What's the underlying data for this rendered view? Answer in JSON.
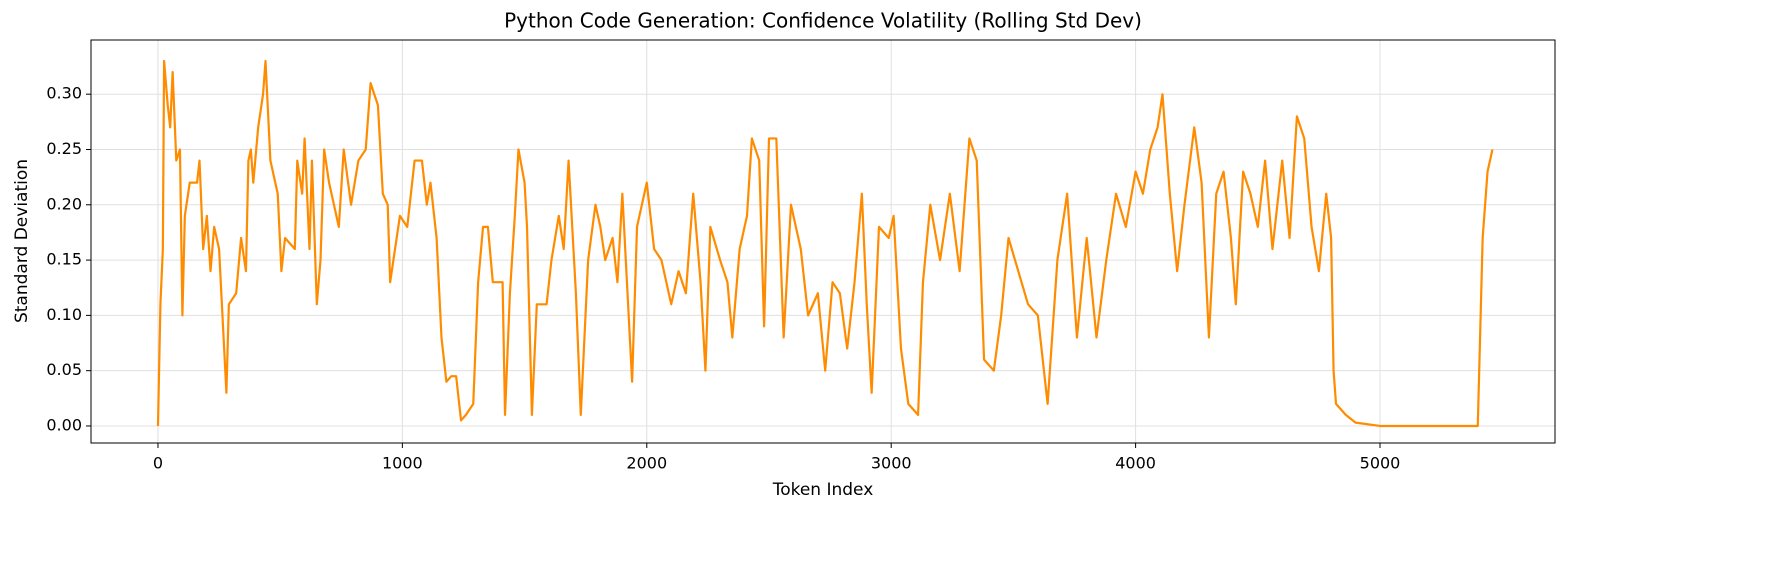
{
  "chart_data": {
    "type": "line",
    "title": "Python Code Generation: Confidence Volatility (Rolling Std Dev)",
    "x_label": "Token Index",
    "y_label": "Standard Deviation",
    "grid": true,
    "xlim": [
      -274,
      5716
    ],
    "xticks": [
      0,
      1000,
      2000,
      3000,
      4000,
      5000
    ],
    "ylim": [
      -0.0154,
      0.349
    ],
    "yticks": [
      {
        "value": 0,
        "label": "0.00"
      },
      {
        "value": 0.05,
        "label": "0.05"
      },
      {
        "value": 0.1,
        "label": "0.10"
      },
      {
        "value": 0.15,
        "label": "0.15"
      },
      {
        "value": 0.2,
        "label": "0.20"
      },
      {
        "value": 0.25,
        "label": "0.25"
      },
      {
        "value": 0.3,
        "label": "0.30"
      }
    ],
    "x": [
      0,
      10,
      20,
      25,
      40,
      50,
      60,
      75,
      90,
      100,
      110,
      130,
      160,
      170,
      185,
      200,
      215,
      230,
      250,
      280,
      290,
      320,
      340,
      360,
      370,
      380,
      390,
      410,
      430,
      440,
      460,
      490,
      505,
      520,
      560,
      570,
      590,
      600,
      620,
      630,
      650,
      665,
      680,
      700,
      740,
      760,
      790,
      820,
      850,
      870,
      900,
      920,
      940,
      950,
      970,
      990,
      1020,
      1050,
      1080,
      1100,
      1115,
      1140,
      1160,
      1180,
      1200,
      1220,
      1240,
      1260,
      1290,
      1310,
      1330,
      1350,
      1370,
      1410,
      1420,
      1440,
      1460,
      1475,
      1500,
      1510,
      1530,
      1550,
      1590,
      1610,
      1640,
      1660,
      1680,
      1710,
      1730,
      1760,
      1790,
      1810,
      1830,
      1860,
      1880,
      1900,
      1940,
      1960,
      1980,
      2000,
      2030,
      2060,
      2100,
      2130,
      2160,
      2190,
      2220,
      2240,
      2260,
      2300,
      2330,
      2350,
      2380,
      2410,
      2430,
      2460,
      2480,
      2500,
      2530,
      2560,
      2590,
      2630,
      2660,
      2700,
      2730,
      2760,
      2790,
      2820,
      2850,
      2880,
      2900,
      2920,
      2950,
      2990,
      3010,
      3040,
      3070,
      3110,
      3130,
      3160,
      3200,
      3240,
      3280,
      3320,
      3350,
      3380,
      3420,
      3450,
      3480,
      3520,
      3560,
      3600,
      3640,
      3680,
      3720,
      3760,
      3800,
      3840,
      3880,
      3920,
      3960,
      4000,
      4030,
      4060,
      4090,
      4110,
      4140,
      4170,
      4200,
      4240,
      4270,
      4300,
      4330,
      4360,
      4390,
      4410,
      4440,
      4470,
      4500,
      4530,
      4560,
      4600,
      4630,
      4660,
      4690,
      4720,
      4750,
      4780,
      4800,
      4810,
      4820,
      4860,
      4900,
      5000,
      5100,
      5200,
      5300,
      5400,
      5420,
      5440,
      5460
    ],
    "series": [
      {
        "name": "Rolling Std Dev",
        "color": "#ff8c00",
        "values": [
          0,
          0.11,
          0.16,
          0.33,
          0.29,
          0.27,
          0.32,
          0.24,
          0.25,
          0.1,
          0.19,
          0.22,
          0.22,
          0.24,
          0.16,
          0.19,
          0.14,
          0.18,
          0.16,
          0.03,
          0.11,
          0.12,
          0.17,
          0.14,
          0.24,
          0.25,
          0.22,
          0.27,
          0.3,
          0.33,
          0.24,
          0.21,
          0.14,
          0.17,
          0.16,
          0.24,
          0.21,
          0.26,
          0.16,
          0.24,
          0.11,
          0.15,
          0.25,
          0.22,
          0.18,
          0.25,
          0.2,
          0.24,
          0.25,
          0.31,
          0.29,
          0.21,
          0.2,
          0.13,
          0.16,
          0.19,
          0.18,
          0.24,
          0.24,
          0.2,
          0.22,
          0.17,
          0.08,
          0.04,
          0.045,
          0.045,
          0.005,
          0.01,
          0.02,
          0.13,
          0.18,
          0.18,
          0.13,
          0.13,
          0.01,
          0.12,
          0.19,
          0.25,
          0.22,
          0.18,
          0.01,
          0.11,
          0.11,
          0.15,
          0.19,
          0.16,
          0.24,
          0.12,
          0.01,
          0.15,
          0.2,
          0.18,
          0.15,
          0.17,
          0.13,
          0.21,
          0.04,
          0.18,
          0.2,
          0.22,
          0.16,
          0.15,
          0.11,
          0.14,
          0.12,
          0.21,
          0.13,
          0.05,
          0.18,
          0.15,
          0.13,
          0.08,
          0.16,
          0.19,
          0.26,
          0.24,
          0.09,
          0.26,
          0.26,
          0.08,
          0.2,
          0.16,
          0.1,
          0.12,
          0.05,
          0.13,
          0.12,
          0.07,
          0.13,
          0.21,
          0.11,
          0.03,
          0.18,
          0.17,
          0.19,
          0.07,
          0.02,
          0.01,
          0.13,
          0.2,
          0.15,
          0.21,
          0.14,
          0.26,
          0.24,
          0.06,
          0.05,
          0.1,
          0.17,
          0.14,
          0.11,
          0.1,
          0.02,
          0.15,
          0.21,
          0.08,
          0.17,
          0.08,
          0.15,
          0.21,
          0.18,
          0.23,
          0.21,
          0.25,
          0.27,
          0.3,
          0.21,
          0.14,
          0.2,
          0.27,
          0.22,
          0.08,
          0.21,
          0.23,
          0.17,
          0.11,
          0.23,
          0.21,
          0.18,
          0.24,
          0.16,
          0.24,
          0.17,
          0.28,
          0.26,
          0.18,
          0.14,
          0.21,
          0.17,
          0.05,
          0.02,
          0.01,
          0.003,
          0,
          0,
          0,
          0,
          0,
          0.17,
          0.23,
          0.25
        ]
      }
    ]
  }
}
